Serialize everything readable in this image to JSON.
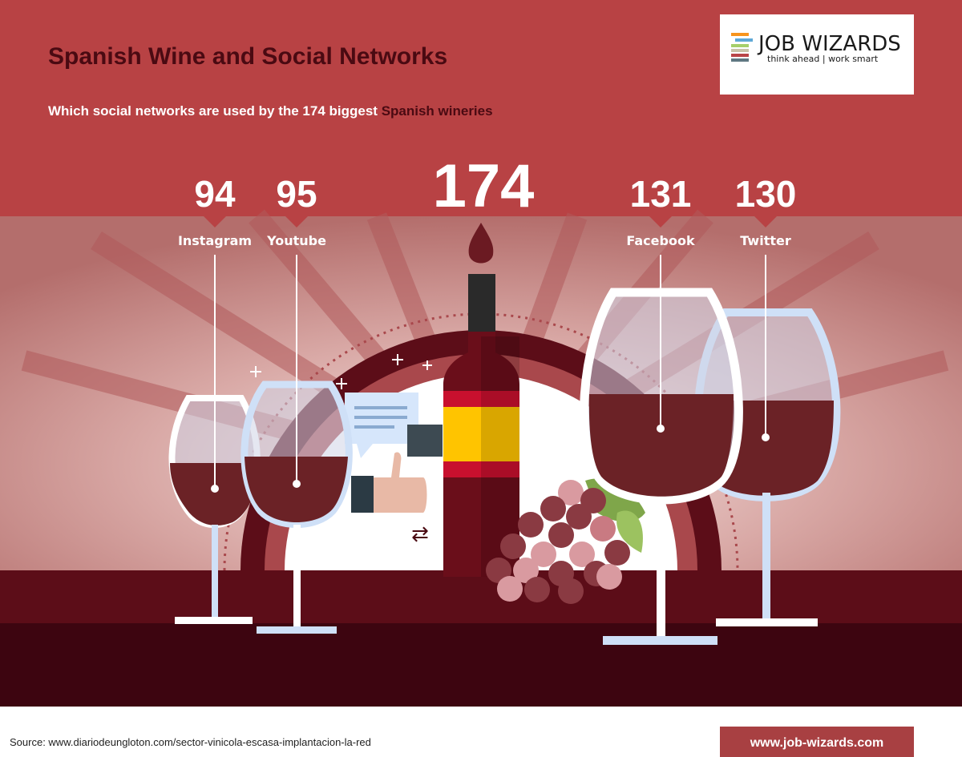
{
  "header": {
    "title": "Spanish Wine and Social Networks",
    "subtitle_prefix": "Which social networks are used by the 174 biggest ",
    "subtitle_highlight": "Spanish wineries"
  },
  "logo": {
    "name": "JOB WIZARDS",
    "tagline": "think ahead | work smart",
    "stripe_colors": [
      "#f7941d",
      "#5fa8d6",
      "#a6cf6a",
      "#c9c3a8",
      "#b94548",
      "#607882"
    ]
  },
  "total": {
    "value": "174"
  },
  "networks": [
    {
      "label": "Instagram",
      "value": "94"
    },
    {
      "label": "Youtube",
      "value": "95"
    },
    {
      "label": "Facebook",
      "value": "131"
    },
    {
      "label": "Twitter",
      "value": "130"
    }
  ],
  "footer": {
    "source": "Source: www.diariodeungloton.com/sector-vinicola-escasa-implantacion-la-red",
    "website": "www.job-wizards.com"
  },
  "colors": {
    "brand_red": "#b84244",
    "dark_wine": "#5c0d18",
    "title_text": "#4a0a12",
    "wine": "#6b2226",
    "glass": "#cfe0f7"
  }
}
